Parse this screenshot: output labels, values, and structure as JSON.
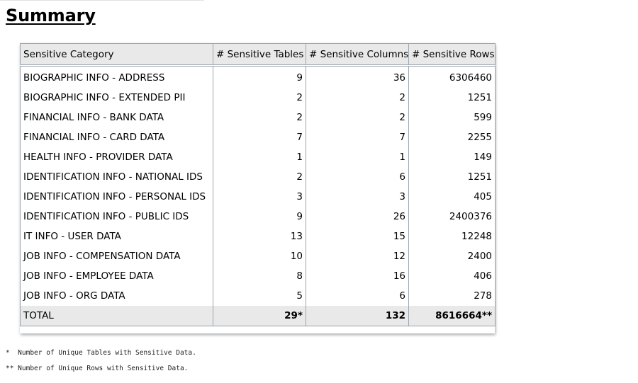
{
  "title": "Summary",
  "table": {
    "headers": [
      "Sensitive Category",
      "# Sensitive Tables",
      "# Sensitive Columns",
      "# Sensitive Rows"
    ],
    "rows": [
      {
        "category": "BIOGRAPHIC INFO - ADDRESS",
        "tables": "9",
        "columns": "36",
        "rows": "6306460"
      },
      {
        "category": "BIOGRAPHIC INFO - EXTENDED PII",
        "tables": "2",
        "columns": "2",
        "rows": "1251"
      },
      {
        "category": "FINANCIAL INFO - BANK DATA",
        "tables": "2",
        "columns": "2",
        "rows": "599"
      },
      {
        "category": "FINANCIAL INFO - CARD DATA",
        "tables": "7",
        "columns": "7",
        "rows": "2255"
      },
      {
        "category": "HEALTH INFO - PROVIDER DATA",
        "tables": "1",
        "columns": "1",
        "rows": "149"
      },
      {
        "category": "IDENTIFICATION INFO - NATIONAL IDS",
        "tables": "2",
        "columns": "6",
        "rows": "1251"
      },
      {
        "category": "IDENTIFICATION INFO - PERSONAL IDS",
        "tables": "3",
        "columns": "3",
        "rows": "405"
      },
      {
        "category": "IDENTIFICATION INFO - PUBLIC IDS",
        "tables": "9",
        "columns": "26",
        "rows": "2400376"
      },
      {
        "category": "IT INFO - USER DATA",
        "tables": "13",
        "columns": "15",
        "rows": "12248"
      },
      {
        "category": "JOB INFO - COMPENSATION DATA",
        "tables": "10",
        "columns": "12",
        "rows": "2400"
      },
      {
        "category": "JOB INFO - EMPLOYEE DATA",
        "tables": "8",
        "columns": "16",
        "rows": "406"
      },
      {
        "category": "JOB INFO - ORG DATA",
        "tables": "5",
        "columns": "6",
        "rows": "278"
      }
    ],
    "total": {
      "label": "TOTAL",
      "tables": "29*",
      "columns": "132",
      "rows": "8616664**"
    }
  },
  "footnotes": [
    "*  Number of Unique Tables with Sensitive Data.",
    "** Number of Unique Rows with Sensitive Data."
  ]
}
